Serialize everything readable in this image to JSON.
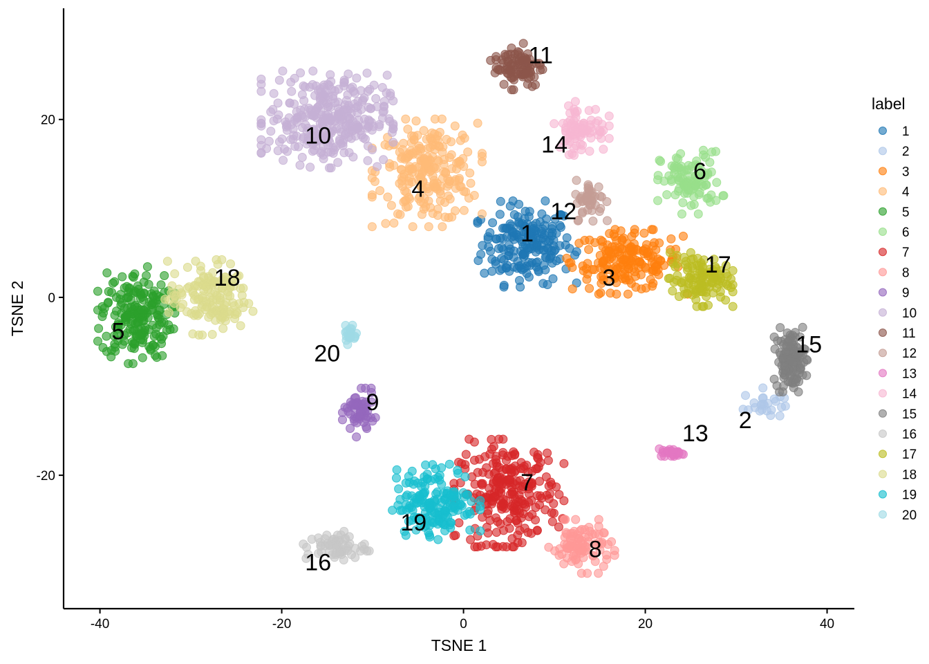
{
  "chart_data": {
    "type": "scatter",
    "title": "",
    "xlabel": "TSNE 1",
    "ylabel": "TSNE 2",
    "xlim": [
      -44,
      43
    ],
    "ylim": [
      -35,
      32.5
    ],
    "x_ticks": [
      -40,
      -20,
      0,
      20,
      40
    ],
    "y_ticks": [
      -20,
      0,
      20
    ],
    "grid": false,
    "legend": {
      "title": "label",
      "placement": "right",
      "entries": [
        "1",
        "2",
        "3",
        "4",
        "5",
        "6",
        "7",
        "8",
        "9",
        "10",
        "11",
        "12",
        "13",
        "14",
        "15",
        "16",
        "17",
        "18",
        "19",
        "20"
      ]
    },
    "clusters": [
      {
        "label": "1",
        "color": "#1f77b4",
        "center": [
          7,
          6
        ],
        "spread": [
          4.5,
          4
        ],
        "n": 200,
        "label_pos": [
          7,
          7
        ]
      },
      {
        "label": "2",
        "color": "#aec7e8",
        "center": [
          33,
          -12
        ],
        "spread": [
          2,
          1.5
        ],
        "n": 25,
        "label_pos": [
          31,
          -14
        ]
      },
      {
        "label": "3",
        "color": "#ff7f0e",
        "center": [
          18,
          4
        ],
        "spread": [
          5.5,
          3
        ],
        "n": 180,
        "label_pos": [
          16,
          2
        ]
      },
      {
        "label": "4",
        "color": "#ffbb78",
        "center": [
          -4,
          14
        ],
        "spread": [
          5,
          5
        ],
        "n": 230,
        "label_pos": [
          -5,
          12
        ]
      },
      {
        "label": "5",
        "color": "#2ca02c",
        "center": [
          -36,
          -2
        ],
        "spread": [
          3.5,
          4.5
        ],
        "n": 200,
        "label_pos": [
          -38,
          -4
        ]
      },
      {
        "label": "6",
        "color": "#98df8a",
        "center": [
          25,
          13
        ],
        "spread": [
          3,
          3
        ],
        "n": 100,
        "label_pos": [
          26,
          14
        ]
      },
      {
        "label": "7",
        "color": "#d62728",
        "center": [
          5,
          -22
        ],
        "spread": [
          5,
          5
        ],
        "n": 250,
        "label_pos": [
          7,
          -21
        ]
      },
      {
        "label": "8",
        "color": "#ff9896",
        "center": [
          13,
          -28
        ],
        "spread": [
          3,
          2.5
        ],
        "n": 90,
        "label_pos": [
          14.5,
          -28.5
        ]
      },
      {
        "label": "9",
        "color": "#9467bd",
        "center": [
          -11.5,
          -13
        ],
        "spread": [
          1.5,
          2.3
        ],
        "n": 60,
        "label_pos": [
          -10,
          -12
        ]
      },
      {
        "label": "10",
        "color": "#c5b0d5",
        "center": [
          -15,
          20
        ],
        "spread": [
          6,
          4.5
        ],
        "n": 320,
        "label_pos": [
          -16,
          18
        ]
      },
      {
        "label": "11",
        "color": "#8c564b",
        "center": [
          6,
          26
        ],
        "spread": [
          2.5,
          2.2
        ],
        "n": 90,
        "label_pos": [
          8.5,
          27
        ]
      },
      {
        "label": "12",
        "color": "#c49c94",
        "center": [
          14,
          11
        ],
        "spread": [
          1.5,
          2
        ],
        "n": 45,
        "label_pos": [
          11,
          9.5
        ]
      },
      {
        "label": "13",
        "color": "#e377c2",
        "center": [
          23,
          -17.5
        ],
        "spread": [
          1.2,
          0.4
        ],
        "n": 30,
        "label_pos": [
          25.5,
          -15.5
        ]
      },
      {
        "label": "14",
        "color": "#f7b6d2",
        "center": [
          13,
          19
        ],
        "spread": [
          2.5,
          2.5
        ],
        "n": 80,
        "label_pos": [
          10,
          17
        ]
      },
      {
        "label": "15",
        "color": "#7f7f7f",
        "center": [
          36,
          -7
        ],
        "spread": [
          1.5,
          3
        ],
        "n": 120,
        "label_pos": [
          38,
          -5.5
        ]
      },
      {
        "label": "16",
        "color": "#c7c7c7",
        "center": [
          -14,
          -28
        ],
        "spread": [
          3,
          1.5
        ],
        "n": 60,
        "label_pos": [
          -16,
          -30
        ]
      },
      {
        "label": "17",
        "color": "#bcbd22",
        "center": [
          26,
          2
        ],
        "spread": [
          3,
          2.5
        ],
        "n": 120,
        "label_pos": [
          28,
          3.5
        ]
      },
      {
        "label": "18",
        "color": "#dbdb8d",
        "center": [
          -28,
          0
        ],
        "spread": [
          4,
          3.5
        ],
        "n": 150,
        "label_pos": [
          -26,
          2
        ]
      },
      {
        "label": "19",
        "color": "#17becf",
        "center": [
          -3,
          -23
        ],
        "spread": [
          4,
          3.5
        ],
        "n": 170,
        "label_pos": [
          -5.5,
          -25.5
        ]
      },
      {
        "label": "20",
        "color": "#9edae5",
        "center": [
          -12.5,
          -4
        ],
        "spread": [
          0.6,
          1.2
        ],
        "n": 20,
        "label_pos": [
          -15,
          -6.5
        ]
      }
    ]
  }
}
